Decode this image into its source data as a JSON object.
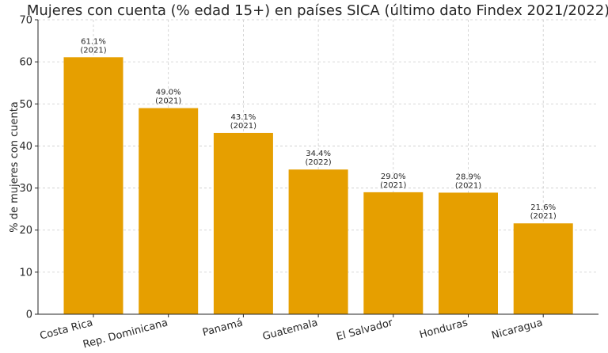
{
  "chart_data": {
    "type": "bar",
    "title": "Mujeres con cuenta (% edad 15+) en países SICA (último dato Findex 2021/2022)",
    "xlabel": "",
    "ylabel": "% de mujeres con cuenta",
    "ylim": [
      0,
      70
    ],
    "yticks": [
      0,
      10,
      20,
      30,
      40,
      50,
      60,
      70
    ],
    "grid": true,
    "bar_color": "#E69F00",
    "categories": [
      "Costa Rica",
      "Rep. Dominicana",
      "Panamá",
      "Guatemala",
      "El Salvador",
      "Honduras",
      "Nicaragua"
    ],
    "values": [
      61.1,
      49.0,
      43.1,
      34.4,
      29.0,
      28.9,
      21.6
    ],
    "value_labels": [
      "61.1%",
      "49.0%",
      "43.1%",
      "34.4%",
      "29.0%",
      "28.9%",
      "21.6%"
    ],
    "years": [
      "(2021)",
      "(2021)",
      "(2021)",
      "(2022)",
      "(2021)",
      "(2021)",
      "(2021)"
    ]
  }
}
